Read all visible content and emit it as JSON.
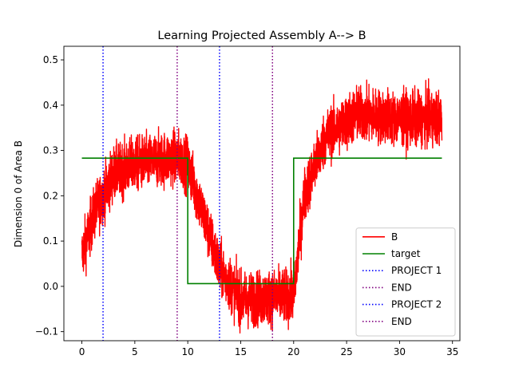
{
  "chart_data": {
    "type": "line",
    "title": "Learning Projected Assembly A--> B",
    "xlabel": "",
    "ylabel": "Dimension 0 of Area B",
    "xlim": [
      -1.7,
      35.7
    ],
    "ylim": [
      -0.12,
      0.53
    ],
    "xticks": [
      0,
      5,
      10,
      15,
      20,
      25,
      30,
      35
    ],
    "yticks": [
      -0.1,
      0.0,
      0.1,
      0.2,
      0.3,
      0.4,
      0.5
    ],
    "ytick_labels": [
      "−0.1",
      "0.0",
      "0.1",
      "0.2",
      "0.3",
      "0.4",
      "0.5"
    ],
    "grid": false,
    "legend_position": "lower-right",
    "series": [
      {
        "name": "B",
        "kind": "noisy-line",
        "color": "#ff0000",
        "x_range": [
          0,
          34
        ],
        "sample_step": 0.01,
        "noise_amplitude": 0.06,
        "mean_profile": {
          "x": [
            0,
            1.3,
            2.0,
            3.0,
            5.0,
            9.0,
            10.0,
            13.0,
            15.0,
            20.0,
            21.0,
            23.0,
            26.0,
            30.0,
            34.0
          ],
          "y": [
            0.07,
            0.17,
            0.2,
            0.25,
            0.27,
            0.285,
            0.27,
            0.04,
            -0.03,
            -0.02,
            0.2,
            0.33,
            0.38,
            0.37,
            0.37
          ]
        }
      },
      {
        "name": "target",
        "kind": "step",
        "color": "#008000",
        "x": [
          0,
          10,
          10,
          20,
          20,
          34
        ],
        "y": [
          0.283,
          0.283,
          0.006,
          0.006,
          0.283,
          0.283
        ]
      }
    ],
    "vlines": [
      {
        "name": "PROJECT 1",
        "x": 2,
        "color": "#0000ff",
        "style": "dotted"
      },
      {
        "name": "END",
        "x": 9,
        "color": "#800080",
        "style": "dotted"
      },
      {
        "name": "PROJECT 2",
        "x": 13,
        "color": "#0000ff",
        "style": "dotted"
      },
      {
        "name": "END",
        "x": 18,
        "color": "#800080",
        "style": "dotted"
      }
    ],
    "legend": [
      {
        "label": "B",
        "color": "#ff0000",
        "style": "solid"
      },
      {
        "label": "target",
        "color": "#008000",
        "style": "solid"
      },
      {
        "label": "PROJECT 1",
        "color": "#0000ff",
        "style": "dotted"
      },
      {
        "label": "END",
        "color": "#800080",
        "style": "dotted"
      },
      {
        "label": "PROJECT 2",
        "color": "#0000ff",
        "style": "dotted"
      },
      {
        "label": "END",
        "color": "#800080",
        "style": "dotted"
      }
    ]
  }
}
